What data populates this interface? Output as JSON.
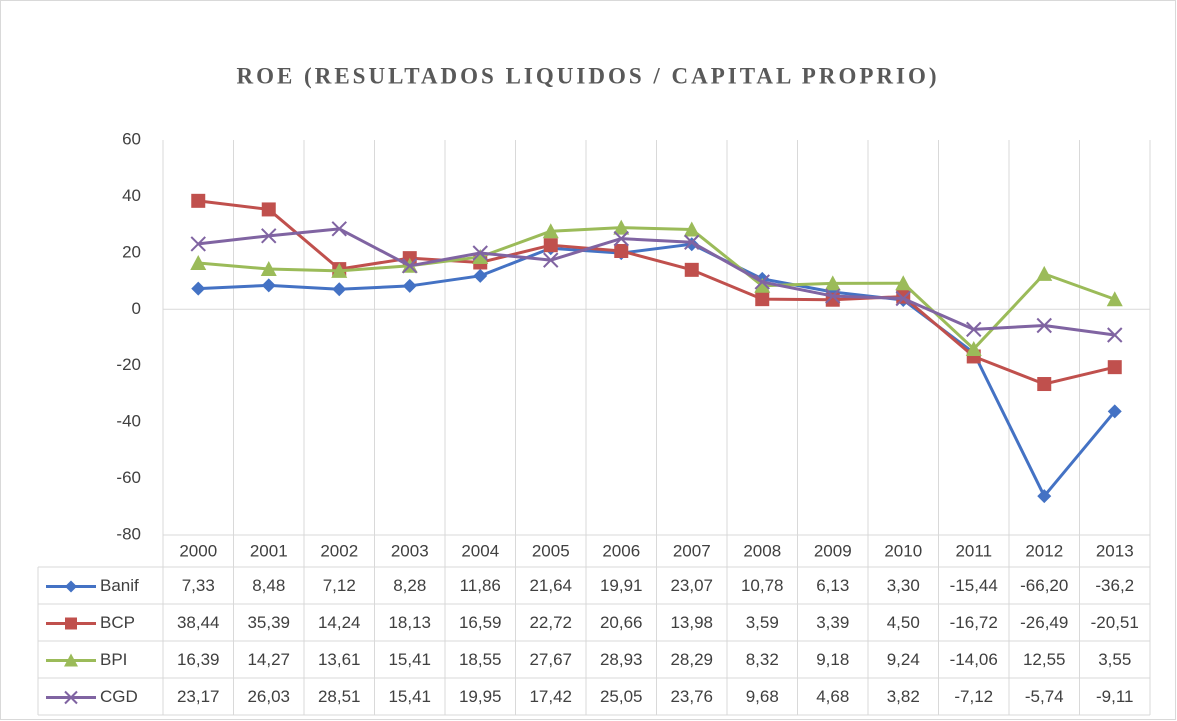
{
  "chart_data": {
    "type": "line",
    "title": "ROE  (RESULTADOS LIQUIDOS / CAPITAL PROPRIO)",
    "categories": [
      "2000",
      "2001",
      "2002",
      "2003",
      "2004",
      "2005",
      "2006",
      "2007",
      "2008",
      "2009",
      "2010",
      "2011",
      "2012",
      "2013"
    ],
    "ylim": [
      -80,
      60
    ],
    "yticks": [
      -80,
      -60,
      -40,
      -20,
      0,
      20,
      40,
      60
    ],
    "series": [
      {
        "name": "Banif",
        "color": "#4472c4",
        "marker": "diamond",
        "values": [
          7.33,
          8.48,
          7.12,
          8.28,
          11.86,
          21.64,
          19.91,
          23.07,
          10.78,
          6.13,
          3.3,
          -15.44,
          -66.2,
          -36.2
        ],
        "value_labels": [
          "7,33",
          "8,48",
          "7,12",
          "8,28",
          "11,86",
          "21,64",
          "19,91",
          "23,07",
          "10,78",
          "6,13",
          "3,30",
          "-15,44",
          "-66,20",
          "-36,2"
        ]
      },
      {
        "name": "BCP",
        "color": "#c0504d",
        "marker": "square",
        "values": [
          38.44,
          35.39,
          14.24,
          18.13,
          16.59,
          22.72,
          20.66,
          13.98,
          3.59,
          3.39,
          4.5,
          -16.72,
          -26.49,
          -20.51
        ],
        "value_labels": [
          "38,44",
          "35,39",
          "14,24",
          "18,13",
          "16,59",
          "22,72",
          "20,66",
          "13,98",
          "3,59",
          "3,39",
          "4,50",
          "-16,72",
          "-26,49",
          "-20,51"
        ]
      },
      {
        "name": "BPI",
        "color": "#9bbb59",
        "marker": "triangle",
        "values": [
          16.39,
          14.27,
          13.61,
          15.41,
          18.55,
          27.67,
          28.93,
          28.29,
          8.32,
          9.18,
          9.24,
          -14.06,
          12.55,
          3.55
        ],
        "value_labels": [
          "16,39",
          "14,27",
          "13,61",
          "15,41",
          "18,55",
          "27,67",
          "28,93",
          "28,29",
          "8,32",
          "9,18",
          "9,24",
          "-14,06",
          "12,55",
          "3,55"
        ]
      },
      {
        "name": "CGD",
        "color": "#8064a2",
        "marker": "x",
        "values": [
          23.17,
          26.03,
          28.51,
          15.41,
          19.95,
          17.42,
          25.05,
          23.76,
          9.68,
          4.68,
          3.82,
          -7.12,
          -5.74,
          -9.11
        ],
        "value_labels": [
          "23,17",
          "26,03",
          "28,51",
          "15,41",
          "19,95",
          "17,42",
          "25,05",
          "23,76",
          "9,68",
          "4,68",
          "3,82",
          "-7,12",
          "-5,74",
          "-9,11"
        ]
      }
    ]
  }
}
